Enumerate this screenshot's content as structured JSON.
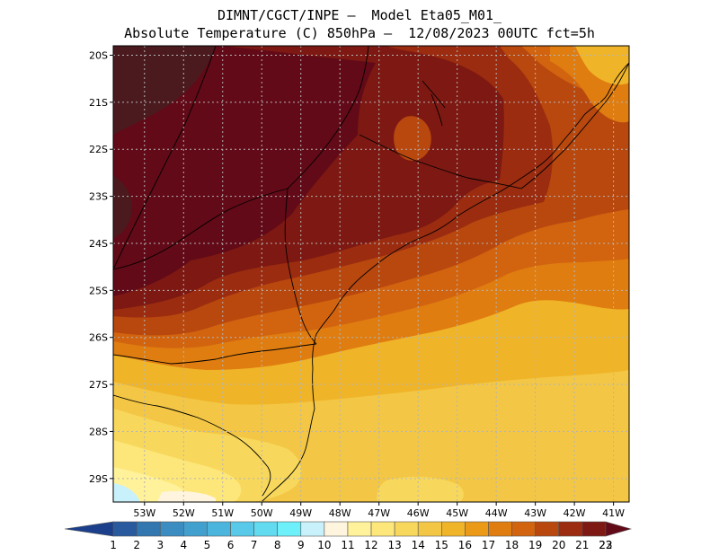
{
  "title": {
    "line1": "DIMNT/CGCT/INPE —  Model Eta05_M01_",
    "line2": "Absolute Temperature (C) 850hPa —  12/08/2023 00UTC fct=5h"
  },
  "map": {
    "lat_labels": [
      "20S",
      "21S",
      "22S",
      "23S",
      "24S",
      "25S",
      "26S",
      "27S",
      "28S",
      "29S"
    ],
    "lon_labels": [
      "53W",
      "52W",
      "51W",
      "50W",
      "49W",
      "48W",
      "47W",
      "46W",
      "45W",
      "44W",
      "43W",
      "42W",
      "41W"
    ],
    "lat_range": [
      -29.5,
      -19.8
    ],
    "lon_range": [
      -53.8,
      -40.6
    ],
    "gridlines": "dotted"
  },
  "colorbar": {
    "labels": [
      "1",
      "2",
      "3",
      "4",
      "5",
      "6",
      "7",
      "8",
      "9",
      "10",
      "11",
      "12",
      "13",
      "14",
      "15",
      "16",
      "17",
      "18",
      "19",
      "20",
      "21",
      "22",
      "23"
    ],
    "colors": [
      "#1b3f8b",
      "#2a5a9e",
      "#3277b0",
      "#3b8cc0",
      "#42a0cf",
      "#4cb5dd",
      "#58c9e8",
      "#62dbf1",
      "#6ef0fa",
      "#c8f1fb",
      "#fff5de",
      "#fff29a",
      "#fde77a",
      "#f8d85c",
      "#f3c745",
      "#f0b428",
      "#ea9a17",
      "#df7d10",
      "#d2640f",
      "#b9480e",
      "#9b2c10",
      "#7d1912",
      "#620a17"
    ]
  }
}
